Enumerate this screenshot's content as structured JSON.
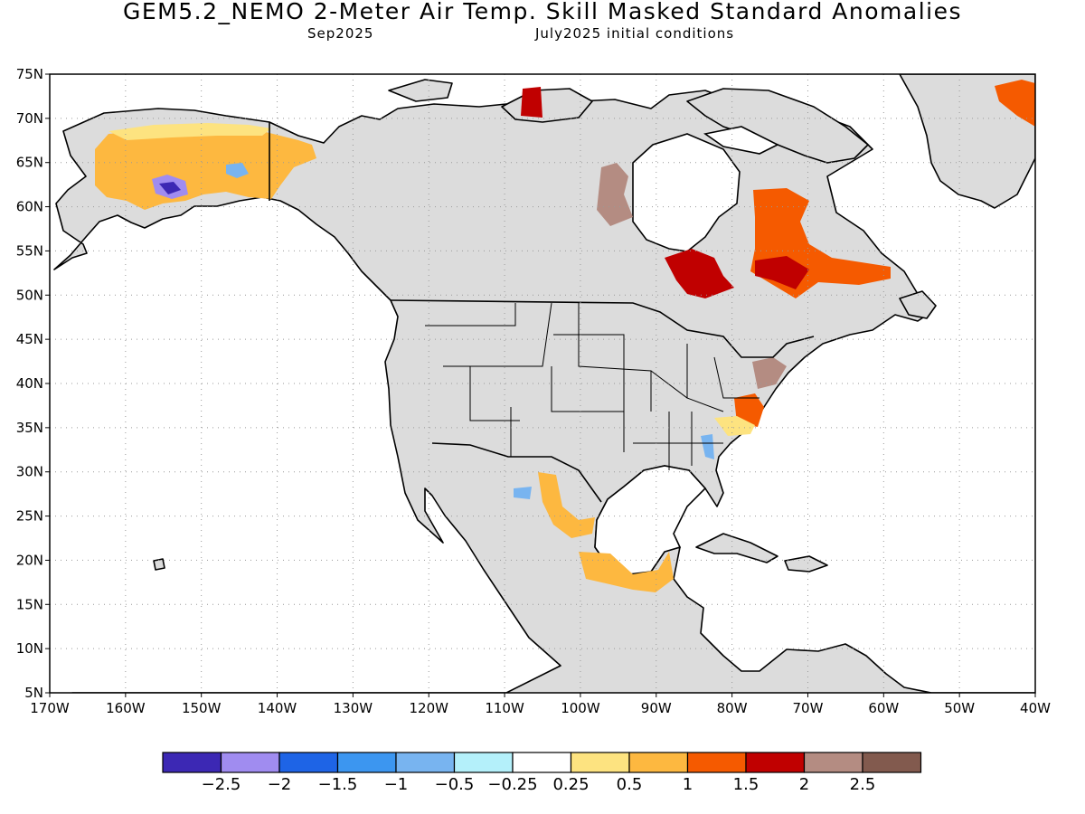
{
  "header": {
    "title": "GEM5.2_NEMO 2-Meter Air Temp. Skill Masked Standard Anomalies",
    "valid_month": "Sep2025",
    "init_conditions": "July2025 initial conditions"
  },
  "map": {
    "lat_labels": [
      "75N",
      "70N",
      "65N",
      "60N",
      "55N",
      "50N",
      "45N",
      "40N",
      "35N",
      "30N",
      "25N",
      "20N",
      "15N",
      "10N",
      "5N"
    ],
    "lon_labels": [
      "170W",
      "160W",
      "150W",
      "140W",
      "130W",
      "120W",
      "110W",
      "100W",
      "90W",
      "80W",
      "70W",
      "60W",
      "50W",
      "40W"
    ],
    "lon_extent": [
      -170,
      -40
    ],
    "lat_extent": [
      5,
      75
    ],
    "land_color": "#dcdcdc",
    "coast_color": "#000000",
    "anomaly_regions": [
      {
        "name": "alaska-interior",
        "category": "0.5 to 1",
        "color": "#fdb840"
      },
      {
        "name": "alaska-north-slope",
        "category": "0.25 to 0.5",
        "color": "#fde380"
      },
      {
        "name": "alaska-sw-cold",
        "category": "-2.5 to -2",
        "color": "#a08cf0"
      },
      {
        "name": "alaska-cold-core",
        "category": "< -2.5",
        "color": "#3c28b4"
      },
      {
        "name": "yukon-cold",
        "category": "-1 to -0.5",
        "color": "#78b4f0"
      },
      {
        "name": "hudson-bay-west",
        "category": "2 to 2.5",
        "color": "#b48c82"
      },
      {
        "name": "ontario-north",
        "category": "1.5 to 2",
        "color": "#c00000"
      },
      {
        "name": "quebec",
        "category": "1 to 1.5",
        "color": "#f55a00"
      },
      {
        "name": "quebec-core",
        "category": "1.5 to 2",
        "color": "#c00000"
      },
      {
        "name": "mid-atlantic",
        "category": "1 to 1.5",
        "color": "#f55a00"
      },
      {
        "name": "northeast-us",
        "category": "2 to 2.5",
        "color": "#b48c82"
      },
      {
        "name": "carolinas",
        "category": "0.25 to 0.5",
        "color": "#fde380"
      },
      {
        "name": "georgia-cold",
        "category": "-1 to -0.5",
        "color": "#78b4f0"
      },
      {
        "name": "mexico-north",
        "category": "0.5 to 1",
        "color": "#fdb840"
      },
      {
        "name": "mexico-west-cold",
        "category": "-1 to -0.5",
        "color": "#78b4f0"
      },
      {
        "name": "yucatan",
        "category": "0.5 to 1",
        "color": "#fdb840"
      },
      {
        "name": "greenland-east",
        "category": "1 to 1.5",
        "color": "#f55a00"
      },
      {
        "name": "baffin-island",
        "category": "1.5 to 2",
        "color": "#c00000"
      }
    ]
  },
  "colorbar": {
    "colors": [
      "#3c28b4",
      "#a08cf0",
      "#1e64e6",
      "#3c96f0",
      "#78b4f0",
      "#b4f0fa",
      "#ffffff",
      "#fde380",
      "#fdb840",
      "#f55a00",
      "#c00000",
      "#b48c82",
      "#825a4e"
    ],
    "labels": [
      "-2.5",
      "-2",
      "-1.5",
      "-1",
      "-0.5",
      "-0.25",
      "0.25",
      "0.5",
      "1",
      "1.5",
      "2",
      "2.5"
    ]
  }
}
